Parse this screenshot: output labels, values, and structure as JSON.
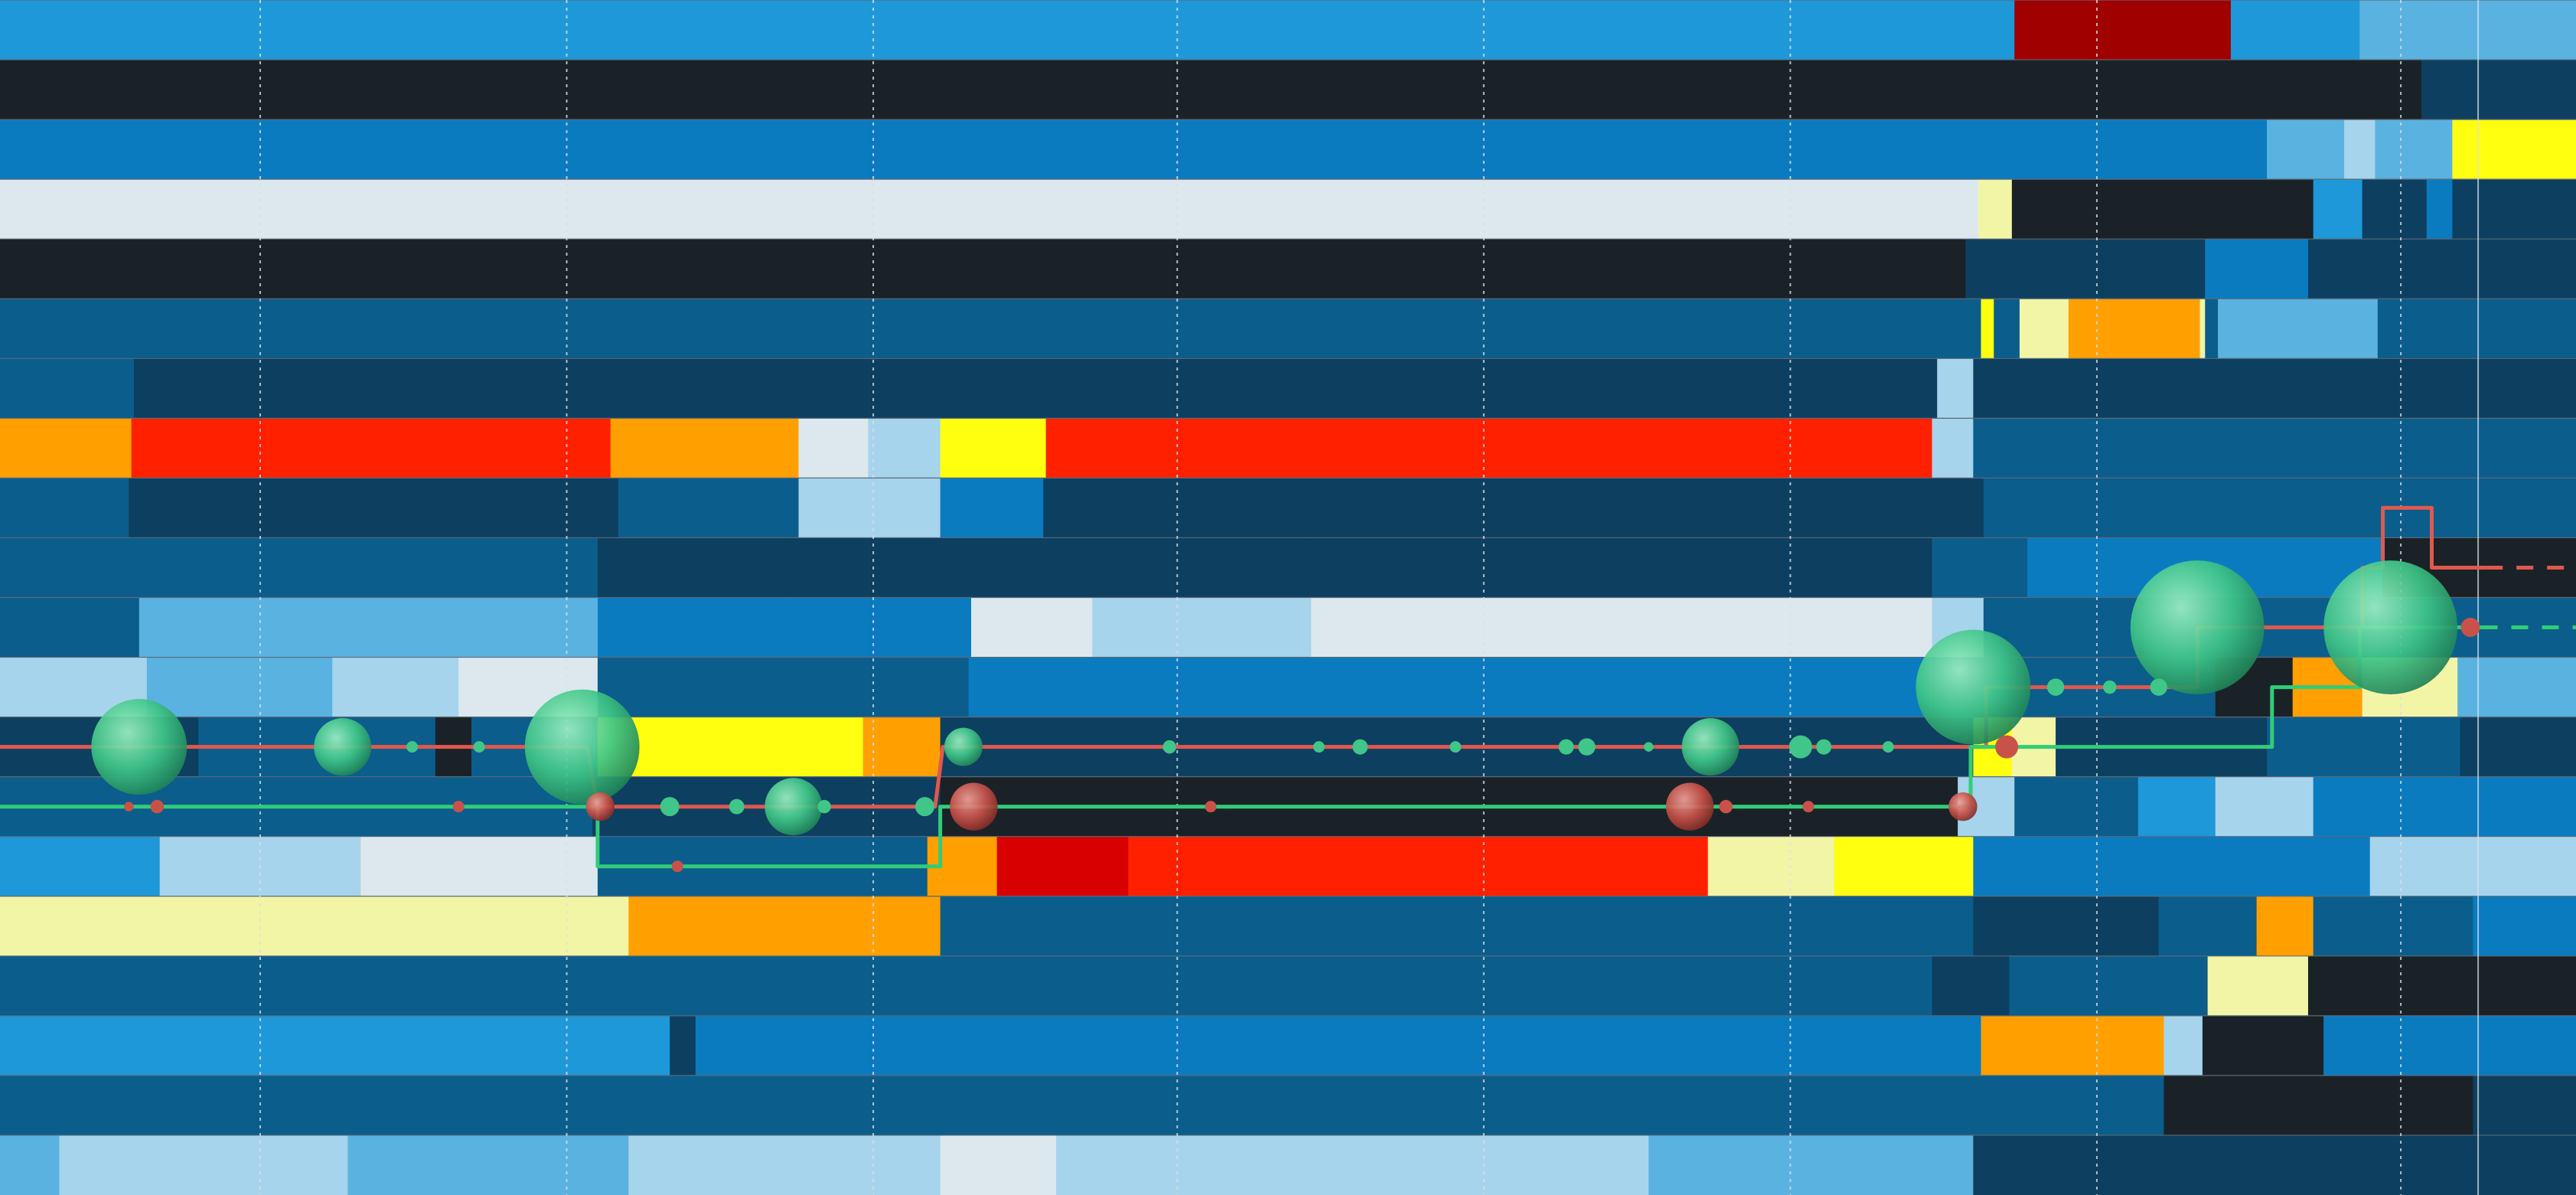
{
  "palette": {
    "background": "#17222a",
    "row_separator": "#5a6a78",
    "gridline": "#d8e0e8",
    "line_red": "#e0584e",
    "line_green": "#32cc78",
    "bubble_green": "#3fc688",
    "bubble_red": "#c8524a",
    "levels": [
      "#1a2228",
      "#0d3f60",
      "#0b5d8c",
      "#0b7bbf",
      "#1e98d8",
      "#5ab2e0",
      "#a6d4ec",
      "#dce8ee",
      "#f3f5a6",
      "#ffff10",
      "#ffa000",
      "#ff2000",
      "#d80000",
      "#a00000"
    ]
  },
  "chart_data": {
    "type": "heatmap",
    "title": "",
    "xlabel": "",
    "ylabel": "",
    "grid": true,
    "legend": "none",
    "x_range": [
      0,
      100
    ],
    "rows": [
      {
        "segments": [
          [
            0,
            78.2,
            4
          ],
          [
            78.2,
            86.6,
            13
          ],
          [
            86.6,
            91.6,
            4
          ],
          [
            91.6,
            100,
            5
          ]
        ]
      },
      {
        "segments": [
          [
            0,
            94,
            0
          ],
          [
            94,
            100,
            1
          ]
        ]
      },
      {
        "segments": [
          [
            0,
            88,
            3
          ],
          [
            88,
            91,
            5
          ],
          [
            91,
            92.2,
            6
          ],
          [
            92.2,
            95.2,
            5
          ],
          [
            95.2,
            100,
            9
          ]
        ]
      },
      {
        "segments": [
          [
            0,
            76.8,
            7
          ],
          [
            76.8,
            78.1,
            8
          ],
          [
            78.1,
            89.8,
            0
          ],
          [
            89.8,
            91.7,
            4
          ],
          [
            91.7,
            94.2,
            1
          ],
          [
            94.2,
            95.2,
            3
          ],
          [
            95.2,
            100,
            1
          ]
        ]
      },
      {
        "segments": [
          [
            0,
            76.3,
            0
          ],
          [
            76.3,
            85.6,
            1
          ],
          [
            85.6,
            89.6,
            3
          ],
          [
            89.6,
            93.5,
            1
          ],
          [
            93.5,
            100,
            1
          ]
        ]
      },
      {
        "segments": [
          [
            0,
            76.9,
            2
          ],
          [
            76.9,
            77.4,
            9
          ],
          [
            77.4,
            78.4,
            2
          ],
          [
            78.4,
            80.3,
            8
          ],
          [
            80.3,
            85.4,
            10
          ],
          [
            85.4,
            85.6,
            8
          ],
          [
            85.6,
            86.1,
            2
          ],
          [
            86.1,
            92.3,
            5
          ],
          [
            92.3,
            100,
            2
          ]
        ]
      },
      {
        "segments": [
          [
            0,
            5.2,
            2
          ],
          [
            5.2,
            75.2,
            1
          ],
          [
            75.2,
            76.6,
            6
          ],
          [
            76.6,
            100,
            1
          ]
        ]
      },
      {
        "segments": [
          [
            0,
            2.3,
            10
          ],
          [
            2.3,
            5.1,
            10
          ],
          [
            5.1,
            23.7,
            11
          ],
          [
            23.7,
            31,
            10
          ],
          [
            31,
            33.7,
            7
          ],
          [
            33.7,
            36.5,
            6
          ],
          [
            36.5,
            40.6,
            9
          ],
          [
            40.6,
            75,
            11
          ],
          [
            75,
            76.6,
            6
          ],
          [
            76.6,
            100,
            2
          ]
        ]
      },
      {
        "segments": [
          [
            0,
            5,
            2
          ],
          [
            5,
            24,
            1
          ],
          [
            24,
            31,
            2
          ],
          [
            31,
            36.5,
            6
          ],
          [
            36.5,
            40.5,
            3
          ],
          [
            40.5,
            77,
            1
          ],
          [
            77,
            100,
            2
          ]
        ]
      },
      {
        "segments": [
          [
            0,
            23.2,
            2
          ],
          [
            23.2,
            30.6,
            1
          ],
          [
            30.6,
            50.8,
            1
          ],
          [
            50.8,
            75,
            1
          ],
          [
            75,
            78.7,
            2
          ],
          [
            78.7,
            92.5,
            3
          ],
          [
            92.5,
            95.8,
            0
          ],
          [
            95.8,
            100,
            0
          ]
        ]
      },
      {
        "segments": [
          [
            0,
            5.4,
            2
          ],
          [
            5.4,
            23.2,
            5
          ],
          [
            23.2,
            37.7,
            3
          ],
          [
            37.7,
            42.4,
            7
          ],
          [
            42.4,
            45.3,
            6
          ],
          [
            45.3,
            50.9,
            6
          ],
          [
            50.9,
            75,
            7
          ],
          [
            75,
            77,
            6
          ],
          [
            77,
            100,
            2
          ]
        ]
      },
      {
        "segments": [
          [
            0,
            5.7,
            6
          ],
          [
            5.7,
            12.9,
            5
          ],
          [
            12.9,
            17.8,
            6
          ],
          [
            17.8,
            23.2,
            7
          ],
          [
            23.2,
            37.6,
            2
          ],
          [
            37.6,
            75,
            3
          ],
          [
            75,
            86,
            2
          ],
          [
            86,
            89,
            0
          ],
          [
            89,
            91.7,
            10
          ],
          [
            91.7,
            95.4,
            8
          ],
          [
            95.4,
            100,
            5
          ]
        ]
      },
      {
        "segments": [
          [
            0,
            7.7,
            1
          ],
          [
            7.7,
            16.9,
            2
          ],
          [
            16.9,
            18.3,
            0
          ],
          [
            18.3,
            23.2,
            2
          ],
          [
            23.2,
            33.5,
            9
          ],
          [
            33.5,
            36.5,
            10
          ],
          [
            36.5,
            45.5,
            1
          ],
          [
            45.5,
            76.6,
            1
          ],
          [
            76.6,
            78.1,
            9
          ],
          [
            78.1,
            79.8,
            8
          ],
          [
            79.8,
            88,
            1
          ],
          [
            88,
            95.5,
            2
          ],
          [
            95.5,
            100,
            1
          ]
        ]
      },
      {
        "segments": [
          [
            0,
            23,
            2
          ],
          [
            23,
            36.5,
            1
          ],
          [
            36.5,
            76,
            0
          ],
          [
            76,
            78.2,
            6
          ],
          [
            78.2,
            83,
            2
          ],
          [
            83,
            86,
            4
          ],
          [
            86,
            89.8,
            6
          ],
          [
            89.8,
            100,
            3
          ]
        ]
      },
      {
        "segments": [
          [
            0,
            6.2,
            4
          ],
          [
            6.2,
            14,
            6
          ],
          [
            14,
            23.2,
            7
          ],
          [
            23.2,
            36,
            2
          ],
          [
            36,
            38.7,
            10
          ],
          [
            38.7,
            43.8,
            12
          ],
          [
            43.8,
            66.3,
            11
          ],
          [
            66.3,
            71.2,
            8
          ],
          [
            71.2,
            76.6,
            9
          ],
          [
            76.6,
            92,
            3
          ],
          [
            92,
            100,
            6
          ]
        ]
      },
      {
        "segments": [
          [
            0,
            24.4,
            8
          ],
          [
            24.4,
            36.5,
            10
          ],
          [
            36.5,
            76.6,
            2
          ],
          [
            76.6,
            83.8,
            1
          ],
          [
            83.8,
            87.6,
            2
          ],
          [
            87.6,
            89.8,
            10
          ],
          [
            89.8,
            96,
            2
          ],
          [
            96,
            100,
            3
          ]
        ]
      },
      {
        "segments": [
          [
            0,
            14,
            2
          ],
          [
            14,
            75,
            2
          ],
          [
            75,
            78,
            1
          ],
          [
            78,
            85.7,
            2
          ],
          [
            85.7,
            89.6,
            8
          ],
          [
            89.6,
            100,
            0
          ]
        ]
      },
      {
        "segments": [
          [
            0,
            26,
            4
          ],
          [
            26,
            27,
            1
          ],
          [
            27,
            76.9,
            3
          ],
          [
            76.9,
            84,
            10
          ],
          [
            84,
            85.5,
            6
          ],
          [
            85.5,
            90.2,
            0
          ],
          [
            90.2,
            100,
            3
          ]
        ]
      },
      {
        "segments": [
          [
            0,
            76.9,
            2
          ],
          [
            76.9,
            84,
            2
          ],
          [
            84,
            96,
            0
          ],
          [
            96,
            100,
            1
          ]
        ]
      },
      {
        "segments": [
          [
            0,
            2.3,
            5
          ],
          [
            2.3,
            13.5,
            6
          ],
          [
            13.5,
            24.4,
            5
          ],
          [
            24.4,
            36.5,
            6
          ],
          [
            36.5,
            41,
            7
          ],
          [
            41,
            64,
            6
          ],
          [
            64,
            76.6,
            5
          ],
          [
            76.6,
            100,
            1
          ]
        ]
      }
    ],
    "vertical_gridlines_at": [
      10.1,
      22,
      33.9,
      45.7,
      57.6,
      69.5,
      81.4,
      93.2
    ],
    "boundary_line_at": 96.2,
    "series": [
      {
        "color_key": "line_red",
        "points": [
          [
            0,
            12.5
          ],
          [
            22.8,
            12.5
          ],
          [
            23.2,
            13.5
          ],
          [
            36.3,
            13.5
          ],
          [
            36.6,
            12.5
          ],
          [
            77.1,
            12.5
          ],
          [
            77.1,
            11.5
          ],
          [
            85.3,
            11.5
          ],
          [
            85.3,
            10.5
          ],
          [
            91.7,
            10.5
          ],
          [
            91.7,
            9.5
          ],
          [
            92.5,
            9.5
          ],
          [
            92.5,
            8.5
          ],
          [
            94.4,
            8.5
          ],
          [
            94.4,
            9.5
          ],
          [
            96,
            9.5
          ],
          [
            100,
            9.5
          ]
        ],
        "dashed_from": 96.5
      },
      {
        "color_key": "line_green",
        "points": [
          [
            0,
            13.5
          ],
          [
            23.2,
            13.5
          ],
          [
            23.2,
            14.5
          ],
          [
            36.5,
            14.5
          ],
          [
            36.5,
            13.5
          ],
          [
            76.5,
            13.5
          ],
          [
            76.5,
            12.5
          ],
          [
            88.2,
            12.5
          ],
          [
            88.2,
            11.5
          ],
          [
            91.6,
            11.5
          ],
          [
            91.6,
            10.5
          ],
          [
            100,
            10.5
          ]
        ],
        "dashed_from": 96.3
      }
    ],
    "markers": [
      {
        "x": 5.4,
        "y": 12.5,
        "size": 5,
        "color_key": "bubble_green"
      },
      {
        "x": 13.3,
        "y": 12.5,
        "size": 3,
        "color_key": "bubble_green"
      },
      {
        "x": 22.6,
        "y": 12.5,
        "size": 6,
        "color_key": "bubble_green"
      },
      {
        "x": 37.4,
        "y": 12.5,
        "size": 2,
        "color_key": "bubble_green"
      },
      {
        "x": 66.4,
        "y": 12.5,
        "size": 3,
        "color_key": "bubble_green"
      },
      {
        "x": 76.6,
        "y": 11.5,
        "size": 6,
        "color_key": "bubble_green"
      },
      {
        "x": 85.3,
        "y": 10.5,
        "size": 7,
        "color_key": "bubble_green"
      },
      {
        "x": 92.8,
        "y": 10.5,
        "size": 7,
        "color_key": "bubble_green"
      },
      {
        "x": 30.8,
        "y": 13.5,
        "size": 3,
        "color_key": "bubble_green"
      },
      {
        "x": 23.3,
        "y": 13.5,
        "size": 1.5,
        "color_key": "bubble_red"
      },
      {
        "x": 37.8,
        "y": 13.5,
        "size": 2.5,
        "color_key": "bubble_red"
      },
      {
        "x": 65.6,
        "y": 13.5,
        "size": 2.5,
        "color_key": "bubble_red"
      },
      {
        "x": 76.2,
        "y": 13.5,
        "size": 1.5,
        "color_key": "bubble_red"
      },
      {
        "x": 77.9,
        "y": 12.5,
        "size": 1.2,
        "color_key": "bubble_red"
      },
      {
        "x": 95.9,
        "y": 10.5,
        "size": 1,
        "color_key": "bubble_red"
      },
      {
        "x": 16,
        "y": 12.5,
        "size": 0.6,
        "color_key": "bubble_green"
      },
      {
        "x": 18.6,
        "y": 12.5,
        "size": 0.6,
        "color_key": "bubble_green"
      },
      {
        "x": 45.4,
        "y": 12.5,
        "size": 0.7,
        "color_key": "bubble_green"
      },
      {
        "x": 51.2,
        "y": 12.5,
        "size": 0.6,
        "color_key": "bubble_green"
      },
      {
        "x": 52.8,
        "y": 12.5,
        "size": 0.8,
        "color_key": "bubble_green"
      },
      {
        "x": 56.5,
        "y": 12.5,
        "size": 0.6,
        "color_key": "bubble_green"
      },
      {
        "x": 60.8,
        "y": 12.5,
        "size": 0.8,
        "color_key": "bubble_green"
      },
      {
        "x": 61.6,
        "y": 12.5,
        "size": 0.9,
        "color_key": "bubble_green"
      },
      {
        "x": 64,
        "y": 12.5,
        "size": 0.5,
        "color_key": "bubble_green"
      },
      {
        "x": 69.9,
        "y": 12.5,
        "size": 1.2,
        "color_key": "bubble_green"
      },
      {
        "x": 70.8,
        "y": 12.5,
        "size": 0.8,
        "color_key": "bubble_green"
      },
      {
        "x": 73.3,
        "y": 12.5,
        "size": 0.6,
        "color_key": "bubble_green"
      },
      {
        "x": 79.8,
        "y": 11.5,
        "size": 0.9,
        "color_key": "bubble_green"
      },
      {
        "x": 81.9,
        "y": 11.5,
        "size": 0.7,
        "color_key": "bubble_green"
      },
      {
        "x": 83.8,
        "y": 11.5,
        "size": 0.9,
        "color_key": "bubble_green"
      },
      {
        "x": 26,
        "y": 13.5,
        "size": 1,
        "color_key": "bubble_green"
      },
      {
        "x": 28.6,
        "y": 13.5,
        "size": 0.8,
        "color_key": "bubble_green"
      },
      {
        "x": 32,
        "y": 13.5,
        "size": 0.7,
        "color_key": "bubble_green"
      },
      {
        "x": 35.9,
        "y": 13.5,
        "size": 1,
        "color_key": "bubble_green"
      },
      {
        "x": 5,
        "y": 13.5,
        "size": 0.5,
        "color_key": "bubble_red"
      },
      {
        "x": 6.1,
        "y": 13.5,
        "size": 0.7,
        "color_key": "bubble_red"
      },
      {
        "x": 17.8,
        "y": 13.5,
        "size": 0.6,
        "color_key": "bubble_red"
      },
      {
        "x": 47,
        "y": 13.5,
        "size": 0.6,
        "color_key": "bubble_red"
      },
      {
        "x": 67,
        "y": 13.5,
        "size": 0.7,
        "color_key": "bubble_red"
      },
      {
        "x": 70.2,
        "y": 13.5,
        "size": 0.6,
        "color_key": "bubble_red"
      },
      {
        "x": 26.3,
        "y": 14.5,
        "size": 0.6,
        "color_key": "bubble_red"
      }
    ]
  }
}
